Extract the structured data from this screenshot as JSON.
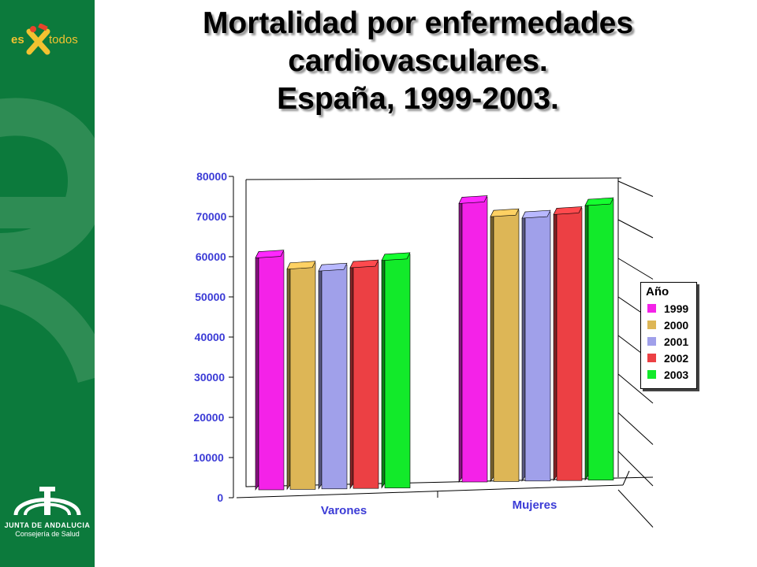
{
  "title": {
    "lines": [
      "Mortalidad por enfermedades",
      "cardiovasculares.",
      "España, 1999-2003."
    ]
  },
  "branding": {
    "logo_top": {
      "left_word": "es",
      "right_word": "todos"
    },
    "junta": {
      "name": "JUNTA DE ANDALUCIA",
      "department": "Consejería de Salud"
    }
  },
  "colors": {
    "sidebar": "#0c7a3c",
    "axis_text": "#3b3bd6",
    "series": [
      "#f422e8",
      "#ddb656",
      "#a0a0ea",
      "#ec4044",
      "#12ea2a"
    ]
  },
  "chart_data": {
    "type": "bar",
    "style": "3d-clustered-column",
    "categories": [
      "Varones",
      "Mujeres"
    ],
    "series": [
      {
        "name": "1999",
        "values": [
          59300,
          70900
        ]
      },
      {
        "name": "2000",
        "values": [
          56400,
          67500
        ]
      },
      {
        "name": "2001",
        "values": [
          55800,
          67000
        ]
      },
      {
        "name": "2002",
        "values": [
          56500,
          67800
        ]
      },
      {
        "name": "2003",
        "values": [
          58200,
          69900
        ]
      }
    ],
    "y_ticks": [
      "0",
      "10000",
      "20000",
      "30000",
      "40000",
      "50000",
      "60000",
      "70000",
      "80000"
    ],
    "ylim": [
      0,
      80000
    ],
    "legend": {
      "title": "Año",
      "position": "right"
    },
    "grid": true
  }
}
